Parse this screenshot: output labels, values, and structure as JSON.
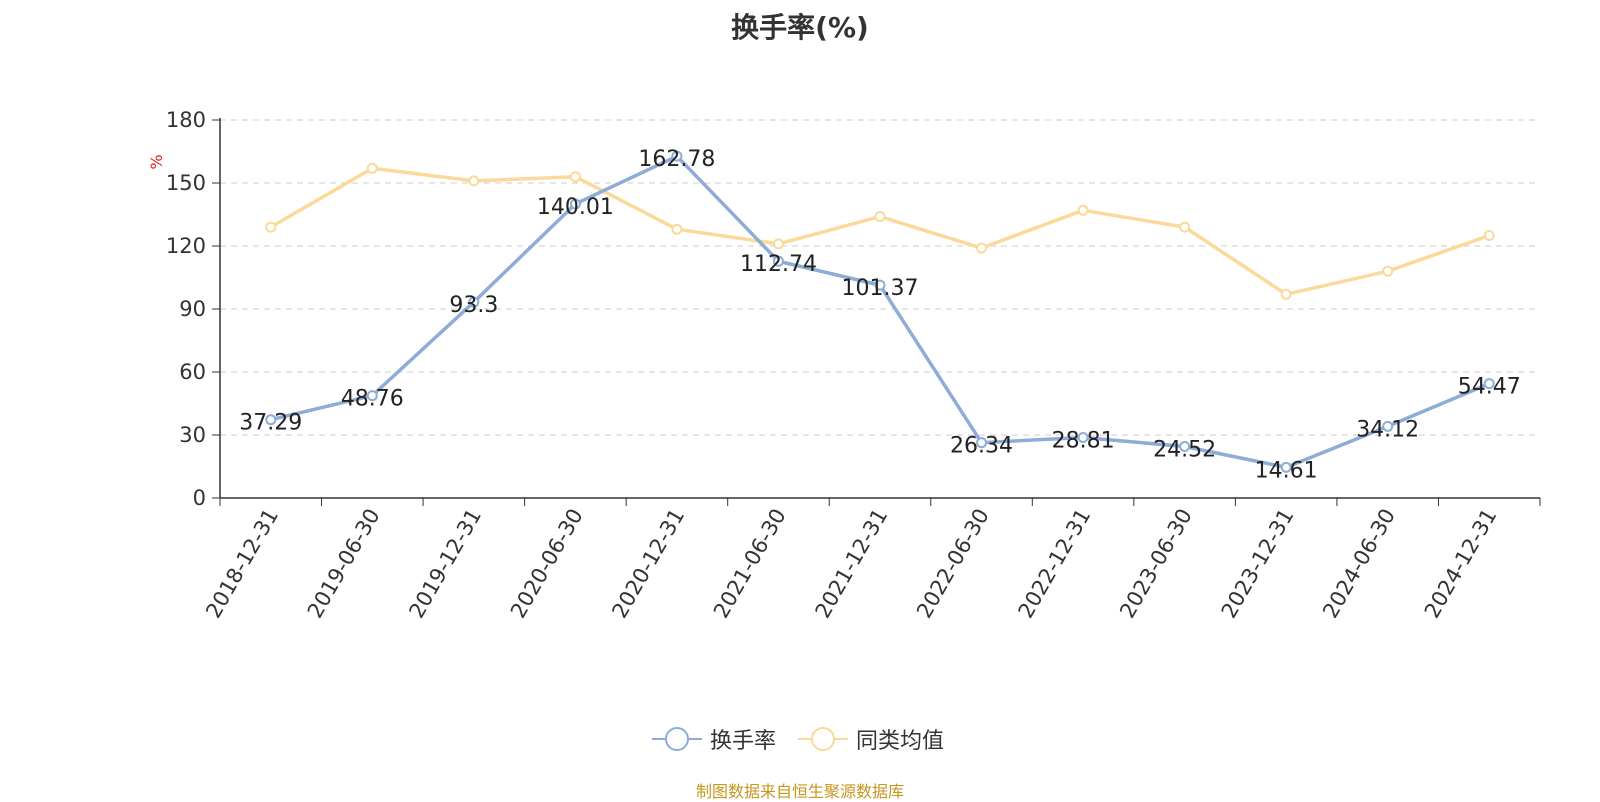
{
  "chart_data": {
    "type": "line",
    "title": "换手率(%)",
    "ylabel": "%",
    "ylim": [
      0,
      180
    ],
    "yticks": [
      0,
      30,
      60,
      90,
      120,
      150,
      180
    ],
    "categories": [
      "2018-12-31",
      "2019-06-30",
      "2019-12-31",
      "2020-06-30",
      "2020-12-31",
      "2021-06-30",
      "2021-12-31",
      "2022-06-30",
      "2022-12-31",
      "2023-06-30",
      "2023-12-31",
      "2024-06-30",
      "2024-12-31"
    ],
    "grid": true,
    "legend_position": "bottom",
    "series": [
      {
        "name": "换手率",
        "color": "#8eacd8",
        "values": [
          37.29,
          48.76,
          93.3,
          140.01,
          162.78,
          112.74,
          101.37,
          26.34,
          28.81,
          24.52,
          14.61,
          34.12,
          54.47
        ],
        "labels": [
          "37.29",
          "48.76",
          "93.3",
          "140.01",
          "162.78",
          "112.74",
          "101.37",
          "26.34",
          "28.81",
          "24.52",
          "14.61",
          "34.12",
          "54.47"
        ]
      },
      {
        "name": "同类均值",
        "color": "#fad99a",
        "values": [
          129,
          157,
          151,
          153,
          128,
          121,
          134,
          119,
          137,
          129,
          97,
          108,
          125
        ]
      }
    ]
  },
  "footer": {
    "source": "制图数据来自恒生聚源数据库"
  }
}
